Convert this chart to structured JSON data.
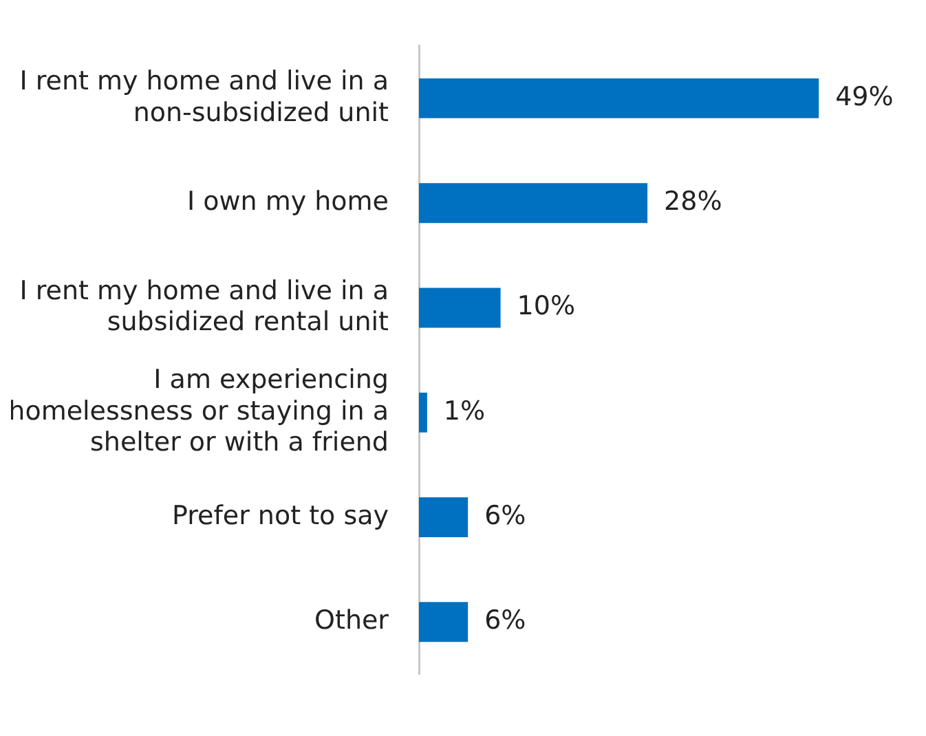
{
  "chart_data": {
    "type": "bar",
    "orientation": "horizontal",
    "categories": [
      "I rent my home and live in a non-subsidized unit",
      "I own my home",
      "I rent my home and live in a subsidized rental unit",
      "I am experiencing homelessness or staying in a shelter or with a friend",
      "Prefer not to say",
      "Other"
    ],
    "values": [
      49,
      28,
      10,
      1,
      6,
      6
    ],
    "value_labels": [
      "49%",
      "28%",
      "10%",
      "1%",
      "6%",
      "6%"
    ],
    "color": "#0070c0"
  }
}
